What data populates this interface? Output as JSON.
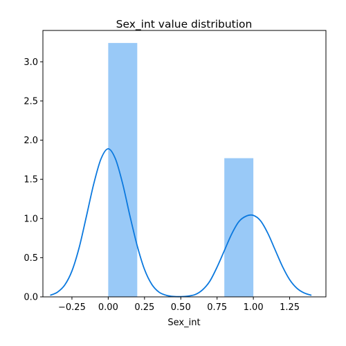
{
  "chart_data": {
    "type": "bar",
    "title": "Sex_int value distribution",
    "xlabel": "Sex_int",
    "ylabel": "",
    "xlim": [
      -0.45,
      1.5
    ],
    "ylim": [
      0,
      3.4
    ],
    "grid": false,
    "x_ticks": [
      "−0.25",
      "0.00",
      "0.25",
      "0.50",
      "0.75",
      "1.00",
      "1.25"
    ],
    "y_ticks": [
      "0.0",
      "0.5",
      "1.0",
      "1.5",
      "2.0",
      "2.5",
      "3.0"
    ],
    "histogram": {
      "bins": [
        {
          "x0": 0.0,
          "x1": 0.2,
          "density": 3.24
        },
        {
          "x0": 0.8,
          "x1": 1.0,
          "density": 1.77
        }
      ],
      "color": "#99c9f7"
    },
    "kde": {
      "color": "#0a78de",
      "points": [
        {
          "x": -0.4,
          "y": 0.02
        },
        {
          "x": -0.35,
          "y": 0.06
        },
        {
          "x": -0.3,
          "y": 0.15
        },
        {
          "x": -0.25,
          "y": 0.33
        },
        {
          "x": -0.2,
          "y": 0.63
        },
        {
          "x": -0.15,
          "y": 1.03
        },
        {
          "x": -0.1,
          "y": 1.44
        },
        {
          "x": -0.05,
          "y": 1.76
        },
        {
          "x": 0.0,
          "y": 1.89
        },
        {
          "x": 0.05,
          "y": 1.76
        },
        {
          "x": 0.1,
          "y": 1.44
        },
        {
          "x": 0.15,
          "y": 1.03
        },
        {
          "x": 0.2,
          "y": 0.65
        },
        {
          "x": 0.25,
          "y": 0.35
        },
        {
          "x": 0.3,
          "y": 0.16
        },
        {
          "x": 0.35,
          "y": 0.06
        },
        {
          "x": 0.4,
          "y": 0.02
        },
        {
          "x": 0.45,
          "y": 0.005
        },
        {
          "x": 0.5,
          "y": 0.003
        },
        {
          "x": 0.55,
          "y": 0.01
        },
        {
          "x": 0.6,
          "y": 0.03
        },
        {
          "x": 0.65,
          "y": 0.09
        },
        {
          "x": 0.7,
          "y": 0.2
        },
        {
          "x": 0.75,
          "y": 0.38
        },
        {
          "x": 0.8,
          "y": 0.59
        },
        {
          "x": 0.85,
          "y": 0.8
        },
        {
          "x": 0.9,
          "y": 0.96
        },
        {
          "x": 0.95,
          "y": 1.03
        },
        {
          "x": 1.0,
          "y": 1.04
        },
        {
          "x": 1.05,
          "y": 0.97
        },
        {
          "x": 1.1,
          "y": 0.81
        },
        {
          "x": 1.15,
          "y": 0.6
        },
        {
          "x": 1.2,
          "y": 0.39
        },
        {
          "x": 1.25,
          "y": 0.22
        },
        {
          "x": 1.3,
          "y": 0.11
        },
        {
          "x": 1.35,
          "y": 0.05
        },
        {
          "x": 1.4,
          "y": 0.02
        }
      ]
    }
  }
}
